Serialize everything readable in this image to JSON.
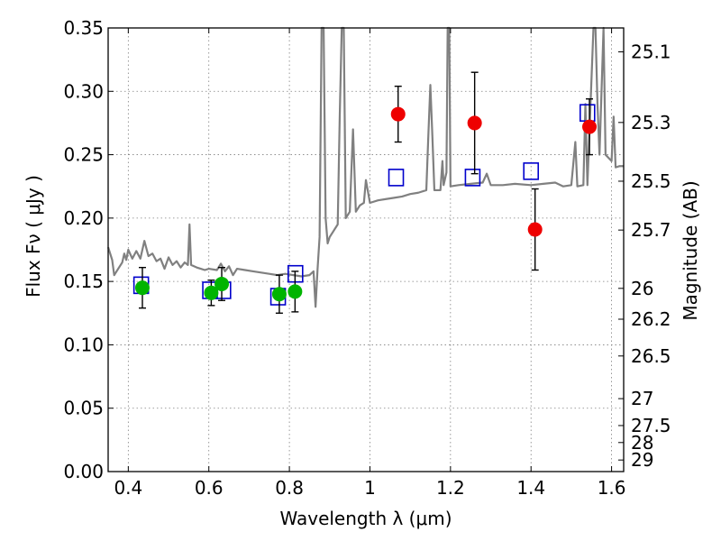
{
  "chart_data": {
    "type": "scatter",
    "xlabel": "Wavelength  λ (μm)",
    "ylabel": "Flux  Fν  ( μJy )",
    "ylabel_right": "Magnitude (AB)",
    "xlim": [
      0.35,
      1.63
    ],
    "ylim": [
      0.0,
      0.35
    ],
    "grid": true,
    "x_ticks": [
      0.4,
      0.6,
      0.8,
      1.0,
      1.2,
      1.4,
      1.6
    ],
    "x_tick_labels": [
      "0.4",
      "0.6",
      "0.8",
      "1",
      "1.2",
      "1.4",
      "1.6"
    ],
    "y_ticks": [
      0.0,
      0.05,
      0.1,
      0.15,
      0.2,
      0.25,
      0.3,
      0.35
    ],
    "y_tick_labels": [
      "0.00",
      "0.05",
      "0.10",
      "0.15",
      "0.20",
      "0.25",
      "0.30",
      "0.35"
    ],
    "right_ticks": [
      {
        "mag": 25.1,
        "label": "25.1"
      },
      {
        "mag": 25.3,
        "label": "25.3"
      },
      {
        "mag": 25.5,
        "label": "25.5"
      },
      {
        "mag": 25.7,
        "label": "25.7"
      },
      {
        "mag": 26.0,
        "label": "26"
      },
      {
        "mag": 26.2,
        "label": "26.2"
      },
      {
        "mag": 26.5,
        "label": "26.5"
      },
      {
        "mag": 27.0,
        "label": "27"
      },
      {
        "mag": 27.5,
        "label": "27.5"
      },
      {
        "mag": 28.0,
        "label": "28"
      },
      {
        "mag": 29.0,
        "label": "29"
      }
    ],
    "colors": {
      "model": "#808080",
      "green": "#00b400",
      "red": "#ee0000",
      "squares": "#0000cc",
      "grid": "#7f7f7f"
    },
    "series": [
      {
        "marker": "circle-green",
        "points": [
          {
            "x": 0.435,
            "y": 0.145,
            "err": 0.016
          },
          {
            "x": 0.606,
            "y": 0.141,
            "err": 0.01
          },
          {
            "x": 0.632,
            "y": 0.148,
            "err": 0.013
          },
          {
            "x": 0.775,
            "y": 0.14,
            "err": 0.015
          },
          {
            "x": 0.814,
            "y": 0.142,
            "err": 0.016
          }
        ]
      },
      {
        "marker": "circle-red",
        "points": [
          {
            "x": 1.07,
            "y": 0.282,
            "err": 0.022
          },
          {
            "x": 1.26,
            "y": 0.275,
            "err": 0.04
          },
          {
            "x": 1.41,
            "y": 0.191,
            "err": 0.032
          },
          {
            "x": 1.545,
            "y": 0.272,
            "err": 0.022
          }
        ]
      },
      {
        "marker": "open-square-blue",
        "points": [
          {
            "x": 0.432,
            "y": 0.147
          },
          {
            "x": 0.603,
            "y": 0.143
          },
          {
            "x": 0.636,
            "y": 0.143
          },
          {
            "x": 0.772,
            "y": 0.138
          },
          {
            "x": 0.815,
            "y": 0.156
          },
          {
            "x": 1.065,
            "y": 0.232
          },
          {
            "x": 1.255,
            "y": 0.232
          },
          {
            "x": 1.4,
            "y": 0.237
          },
          {
            "x": 1.54,
            "y": 0.283
          }
        ]
      },
      {
        "marker": "line-gray",
        "points": [
          {
            "x": 0.35,
            "y": 0.177
          },
          {
            "x": 0.36,
            "y": 0.167
          },
          {
            "x": 0.365,
            "y": 0.155
          },
          {
            "x": 0.375,
            "y": 0.16
          },
          {
            "x": 0.385,
            "y": 0.165
          },
          {
            "x": 0.39,
            "y": 0.172
          },
          {
            "x": 0.395,
            "y": 0.167
          },
          {
            "x": 0.4,
            "y": 0.175
          },
          {
            "x": 0.41,
            "y": 0.168
          },
          {
            "x": 0.42,
            "y": 0.174
          },
          {
            "x": 0.43,
            "y": 0.168
          },
          {
            "x": 0.44,
            "y": 0.182
          },
          {
            "x": 0.45,
            "y": 0.17
          },
          {
            "x": 0.46,
            "y": 0.172
          },
          {
            "x": 0.47,
            "y": 0.166
          },
          {
            "x": 0.48,
            "y": 0.168
          },
          {
            "x": 0.49,
            "y": 0.16
          },
          {
            "x": 0.5,
            "y": 0.169
          },
          {
            "x": 0.51,
            "y": 0.163
          },
          {
            "x": 0.52,
            "y": 0.166
          },
          {
            "x": 0.53,
            "y": 0.161
          },
          {
            "x": 0.54,
            "y": 0.165
          },
          {
            "x": 0.548,
            "y": 0.163
          },
          {
            "x": 0.552,
            "y": 0.195
          },
          {
            "x": 0.556,
            "y": 0.163
          },
          {
            "x": 0.57,
            "y": 0.161
          },
          {
            "x": 0.58,
            "y": 0.16
          },
          {
            "x": 0.59,
            "y": 0.159
          },
          {
            "x": 0.6,
            "y": 0.16
          },
          {
            "x": 0.62,
            "y": 0.159
          },
          {
            "x": 0.63,
            "y": 0.164
          },
          {
            "x": 0.64,
            "y": 0.158
          },
          {
            "x": 0.65,
            "y": 0.162
          },
          {
            "x": 0.66,
            "y": 0.155
          },
          {
            "x": 0.67,
            "y": 0.16
          },
          {
            "x": 0.69,
            "y": 0.159
          },
          {
            "x": 0.71,
            "y": 0.158
          },
          {
            "x": 0.73,
            "y": 0.157
          },
          {
            "x": 0.75,
            "y": 0.156
          },
          {
            "x": 0.77,
            "y": 0.155
          },
          {
            "x": 0.79,
            "y": 0.156
          },
          {
            "x": 0.81,
            "y": 0.155
          },
          {
            "x": 0.83,
            "y": 0.154
          },
          {
            "x": 0.85,
            "y": 0.155
          },
          {
            "x": 0.86,
            "y": 0.158
          },
          {
            "x": 0.865,
            "y": 0.13
          },
          {
            "x": 0.87,
            "y": 0.16
          },
          {
            "x": 0.875,
            "y": 0.185
          },
          {
            "x": 0.88,
            "y": 0.35
          },
          {
            "x": 0.885,
            "y": 0.35
          },
          {
            "x": 0.89,
            "y": 0.2
          },
          {
            "x": 0.895,
            "y": 0.18
          },
          {
            "x": 0.9,
            "y": 0.185
          },
          {
            "x": 0.91,
            "y": 0.19
          },
          {
            "x": 0.92,
            "y": 0.195
          },
          {
            "x": 0.925,
            "y": 0.28
          },
          {
            "x": 0.93,
            "y": 0.35
          },
          {
            "x": 0.935,
            "y": 0.35
          },
          {
            "x": 0.94,
            "y": 0.2
          },
          {
            "x": 0.95,
            "y": 0.205
          },
          {
            "x": 0.958,
            "y": 0.27
          },
          {
            "x": 0.965,
            "y": 0.205
          },
          {
            "x": 0.975,
            "y": 0.21
          },
          {
            "x": 0.985,
            "y": 0.212
          },
          {
            "x": 0.99,
            "y": 0.23
          },
          {
            "x": 1.0,
            "y": 0.212
          },
          {
            "x": 1.02,
            "y": 0.214
          },
          {
            "x": 1.04,
            "y": 0.215
          },
          {
            "x": 1.06,
            "y": 0.216
          },
          {
            "x": 1.08,
            "y": 0.217
          },
          {
            "x": 1.1,
            "y": 0.219
          },
          {
            "x": 1.12,
            "y": 0.22
          },
          {
            "x": 1.14,
            "y": 0.222
          },
          {
            "x": 1.145,
            "y": 0.265
          },
          {
            "x": 1.15,
            "y": 0.305
          },
          {
            "x": 1.155,
            "y": 0.265
          },
          {
            "x": 1.16,
            "y": 0.222
          },
          {
            "x": 1.175,
            "y": 0.222
          },
          {
            "x": 1.18,
            "y": 0.245
          },
          {
            "x": 1.183,
            "y": 0.226
          },
          {
            "x": 1.19,
            "y": 0.236
          },
          {
            "x": 1.193,
            "y": 0.35
          },
          {
            "x": 1.197,
            "y": 0.35
          },
          {
            "x": 1.2,
            "y": 0.225
          },
          {
            "x": 1.22,
            "y": 0.226
          },
          {
            "x": 1.25,
            "y": 0.227
          },
          {
            "x": 1.28,
            "y": 0.228
          },
          {
            "x": 1.29,
            "y": 0.235
          },
          {
            "x": 1.3,
            "y": 0.226
          },
          {
            "x": 1.33,
            "y": 0.226
          },
          {
            "x": 1.36,
            "y": 0.227
          },
          {
            "x": 1.4,
            "y": 0.226
          },
          {
            "x": 1.43,
            "y": 0.227
          },
          {
            "x": 1.46,
            "y": 0.228
          },
          {
            "x": 1.48,
            "y": 0.225
          },
          {
            "x": 1.5,
            "y": 0.226
          },
          {
            "x": 1.51,
            "y": 0.26
          },
          {
            "x": 1.515,
            "y": 0.225
          },
          {
            "x": 1.53,
            "y": 0.226
          },
          {
            "x": 1.535,
            "y": 0.29
          },
          {
            "x": 1.54,
            "y": 0.226
          },
          {
            "x": 1.555,
            "y": 0.35
          },
          {
            "x": 1.56,
            "y": 0.35
          },
          {
            "x": 1.565,
            "y": 0.29
          },
          {
            "x": 1.57,
            "y": 0.25
          },
          {
            "x": 1.58,
            "y": 0.35
          },
          {
            "x": 1.585,
            "y": 0.25
          },
          {
            "x": 1.6,
            "y": 0.245
          },
          {
            "x": 1.605,
            "y": 0.28
          },
          {
            "x": 1.61,
            "y": 0.24
          },
          {
            "x": 1.62,
            "y": 0.241
          },
          {
            "x": 1.63,
            "y": 0.241
          }
        ]
      }
    ]
  }
}
